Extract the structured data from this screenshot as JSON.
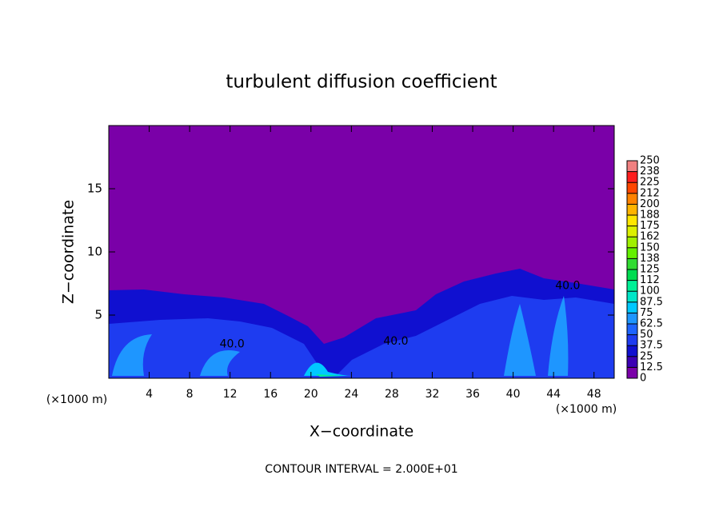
{
  "chart_data": {
    "type": "contour",
    "title": "turbulent diffusion coefficient",
    "xlabel": "X−coordinate",
    "ylabel": "Z−coordinate",
    "xunit": "(×1000 m)",
    "yunit": "(×1000 m)",
    "footnote": "CONTOUR INTERVAL = 2.000E+01",
    "xlim": [
      0,
      50
    ],
    "ylim": [
      0,
      20
    ],
    "xticks": [
      4,
      8,
      12,
      16,
      20,
      24,
      28,
      32,
      36,
      40,
      44,
      48
    ],
    "yticks": [
      5,
      10,
      15
    ],
    "annotations": [
      {
        "text": "40.0",
        "x": 12.2,
        "y": 2.7
      },
      {
        "text": "40.0",
        "x": 28.4,
        "y": 2.9
      },
      {
        "text": "40.0",
        "x": 45.4,
        "y": 7.3
      }
    ],
    "colorbar": {
      "levels": [
        0,
        12.5,
        25,
        37.5,
        50,
        62.5,
        75,
        87.5,
        100,
        {
          "value": 112.5,
          "label": "112"
        },
        125,
        {
          "value": 137.5,
          "label": "138"
        },
        150,
        {
          "value": 162.5,
          "label": "162"
        },
        175,
        {
          "value": 187.5,
          "label": "188"
        },
        200,
        {
          "value": 212.5,
          "label": "212"
        },
        225,
        {
          "value": 237.5,
          "label": "238"
        },
        250
      ],
      "colors": [
        "#7a00a8",
        "#3c00b4",
        "#1010d0",
        "#1e3cf0",
        "#1e64ff",
        "#1e96ff",
        "#00c8ff",
        "#00e6c8",
        "#00f096",
        "#00dc50",
        "#32dc32",
        "#64f000",
        "#a0f000",
        "#dcf000",
        "#ffe600",
        "#ffb400",
        "#ff8200",
        "#ff4600",
        "#ff1e1e",
        "#f08080"
      ]
    }
  }
}
